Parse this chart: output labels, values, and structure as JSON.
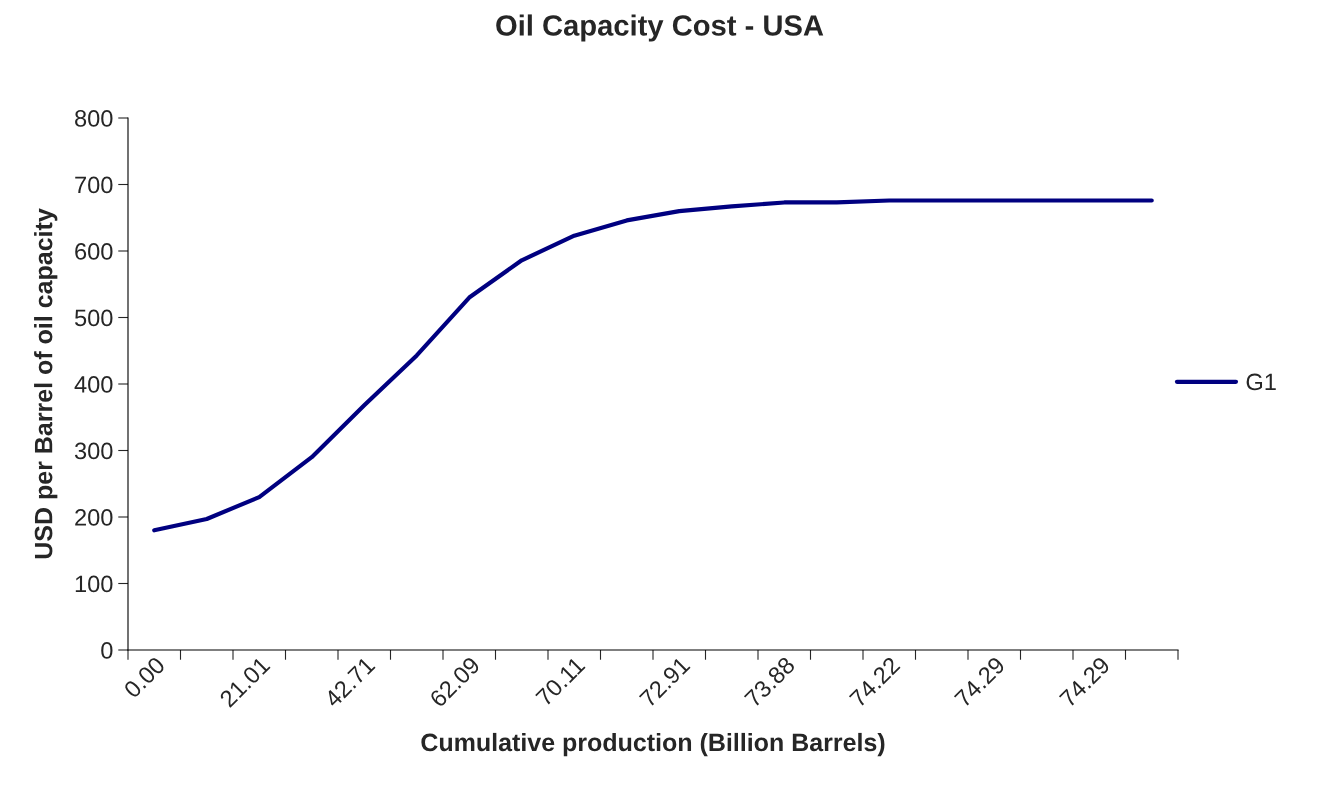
{
  "chart_data": {
    "type": "line",
    "title": "Oil Capacity Cost - USA",
    "xlabel": "Cumulative production (Billion Barrels)",
    "ylabel": "USD per Barrel of oil capacity",
    "categories": [
      "0.00",
      null,
      "21.01",
      null,
      "42.71",
      null,
      "62.09",
      null,
      "70.11",
      null,
      "72.91",
      null,
      "73.88",
      null,
      "74.22",
      null,
      "74.29",
      null,
      "74.29",
      null
    ],
    "series": [
      {
        "name": "G1",
        "color": "#000080",
        "values": [
          180,
          197,
          230,
          290,
          368,
          443,
          530,
          586,
          623,
          646,
          660,
          667,
          673,
          673,
          676,
          676,
          676,
          676,
          676,
          676
        ]
      }
    ],
    "ylim": [
      0,
      800
    ],
    "yticks": [
      0,
      100,
      200,
      300,
      400,
      500,
      600,
      700,
      800
    ],
    "grid": false,
    "legend": "right",
    "marker": "none",
    "line_style": "solid"
  }
}
